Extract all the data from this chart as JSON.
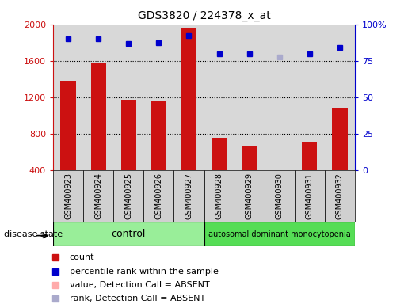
{
  "title": "GDS3820 / 224378_x_at",
  "samples": [
    "GSM400923",
    "GSM400924",
    "GSM400925",
    "GSM400926",
    "GSM400927",
    "GSM400928",
    "GSM400929",
    "GSM400930",
    "GSM400931",
    "GSM400932"
  ],
  "count_values": [
    1380,
    1570,
    1170,
    1160,
    1950,
    760,
    670,
    350,
    710,
    1080
  ],
  "count_absent": [
    false,
    false,
    false,
    false,
    false,
    false,
    false,
    true,
    false,
    false
  ],
  "percentile_values": [
    1840,
    1840,
    1790,
    1800,
    1880,
    1680,
    1680,
    1640,
    1680,
    1750
  ],
  "percentile_absent": [
    false,
    false,
    false,
    false,
    false,
    false,
    false,
    true,
    false,
    false
  ],
  "ylim_left": [
    400,
    2000
  ],
  "ylim_right": [
    0,
    100
  ],
  "yticks_left": [
    400,
    800,
    1200,
    1600,
    2000
  ],
  "ytick_labels_left": [
    "400",
    "800",
    "1200",
    "1600",
    "2000"
  ],
  "yticks_right": [
    0,
    25,
    50,
    75,
    100
  ],
  "ytick_labels_right": [
    "0",
    "25",
    "50",
    "75",
    "100%"
  ],
  "gridlines_at": [
    800,
    1200,
    1600
  ],
  "group_control_label": "control",
  "group_disease_label": "autosomal dominant monocytopenia",
  "disease_state_label": "disease state",
  "color_count": "#cc1111",
  "color_count_absent": "#ffaaaa",
  "color_percentile": "#0000cc",
  "color_percentile_absent": "#aaaacc",
  "bg_plot": "#d8d8d8",
  "bg_xticklabel": "#d0d0d0",
  "bg_control": "#99ee99",
  "bg_disease": "#55dd55",
  "bar_width": 0.5,
  "legend_items": [
    {
      "label": "count",
      "color": "#cc1111"
    },
    {
      "label": "percentile rank within the sample",
      "color": "#0000cc"
    },
    {
      "label": "value, Detection Call = ABSENT",
      "color": "#ffaaaa"
    },
    {
      "label": "rank, Detection Call = ABSENT",
      "color": "#aaaacc"
    }
  ]
}
